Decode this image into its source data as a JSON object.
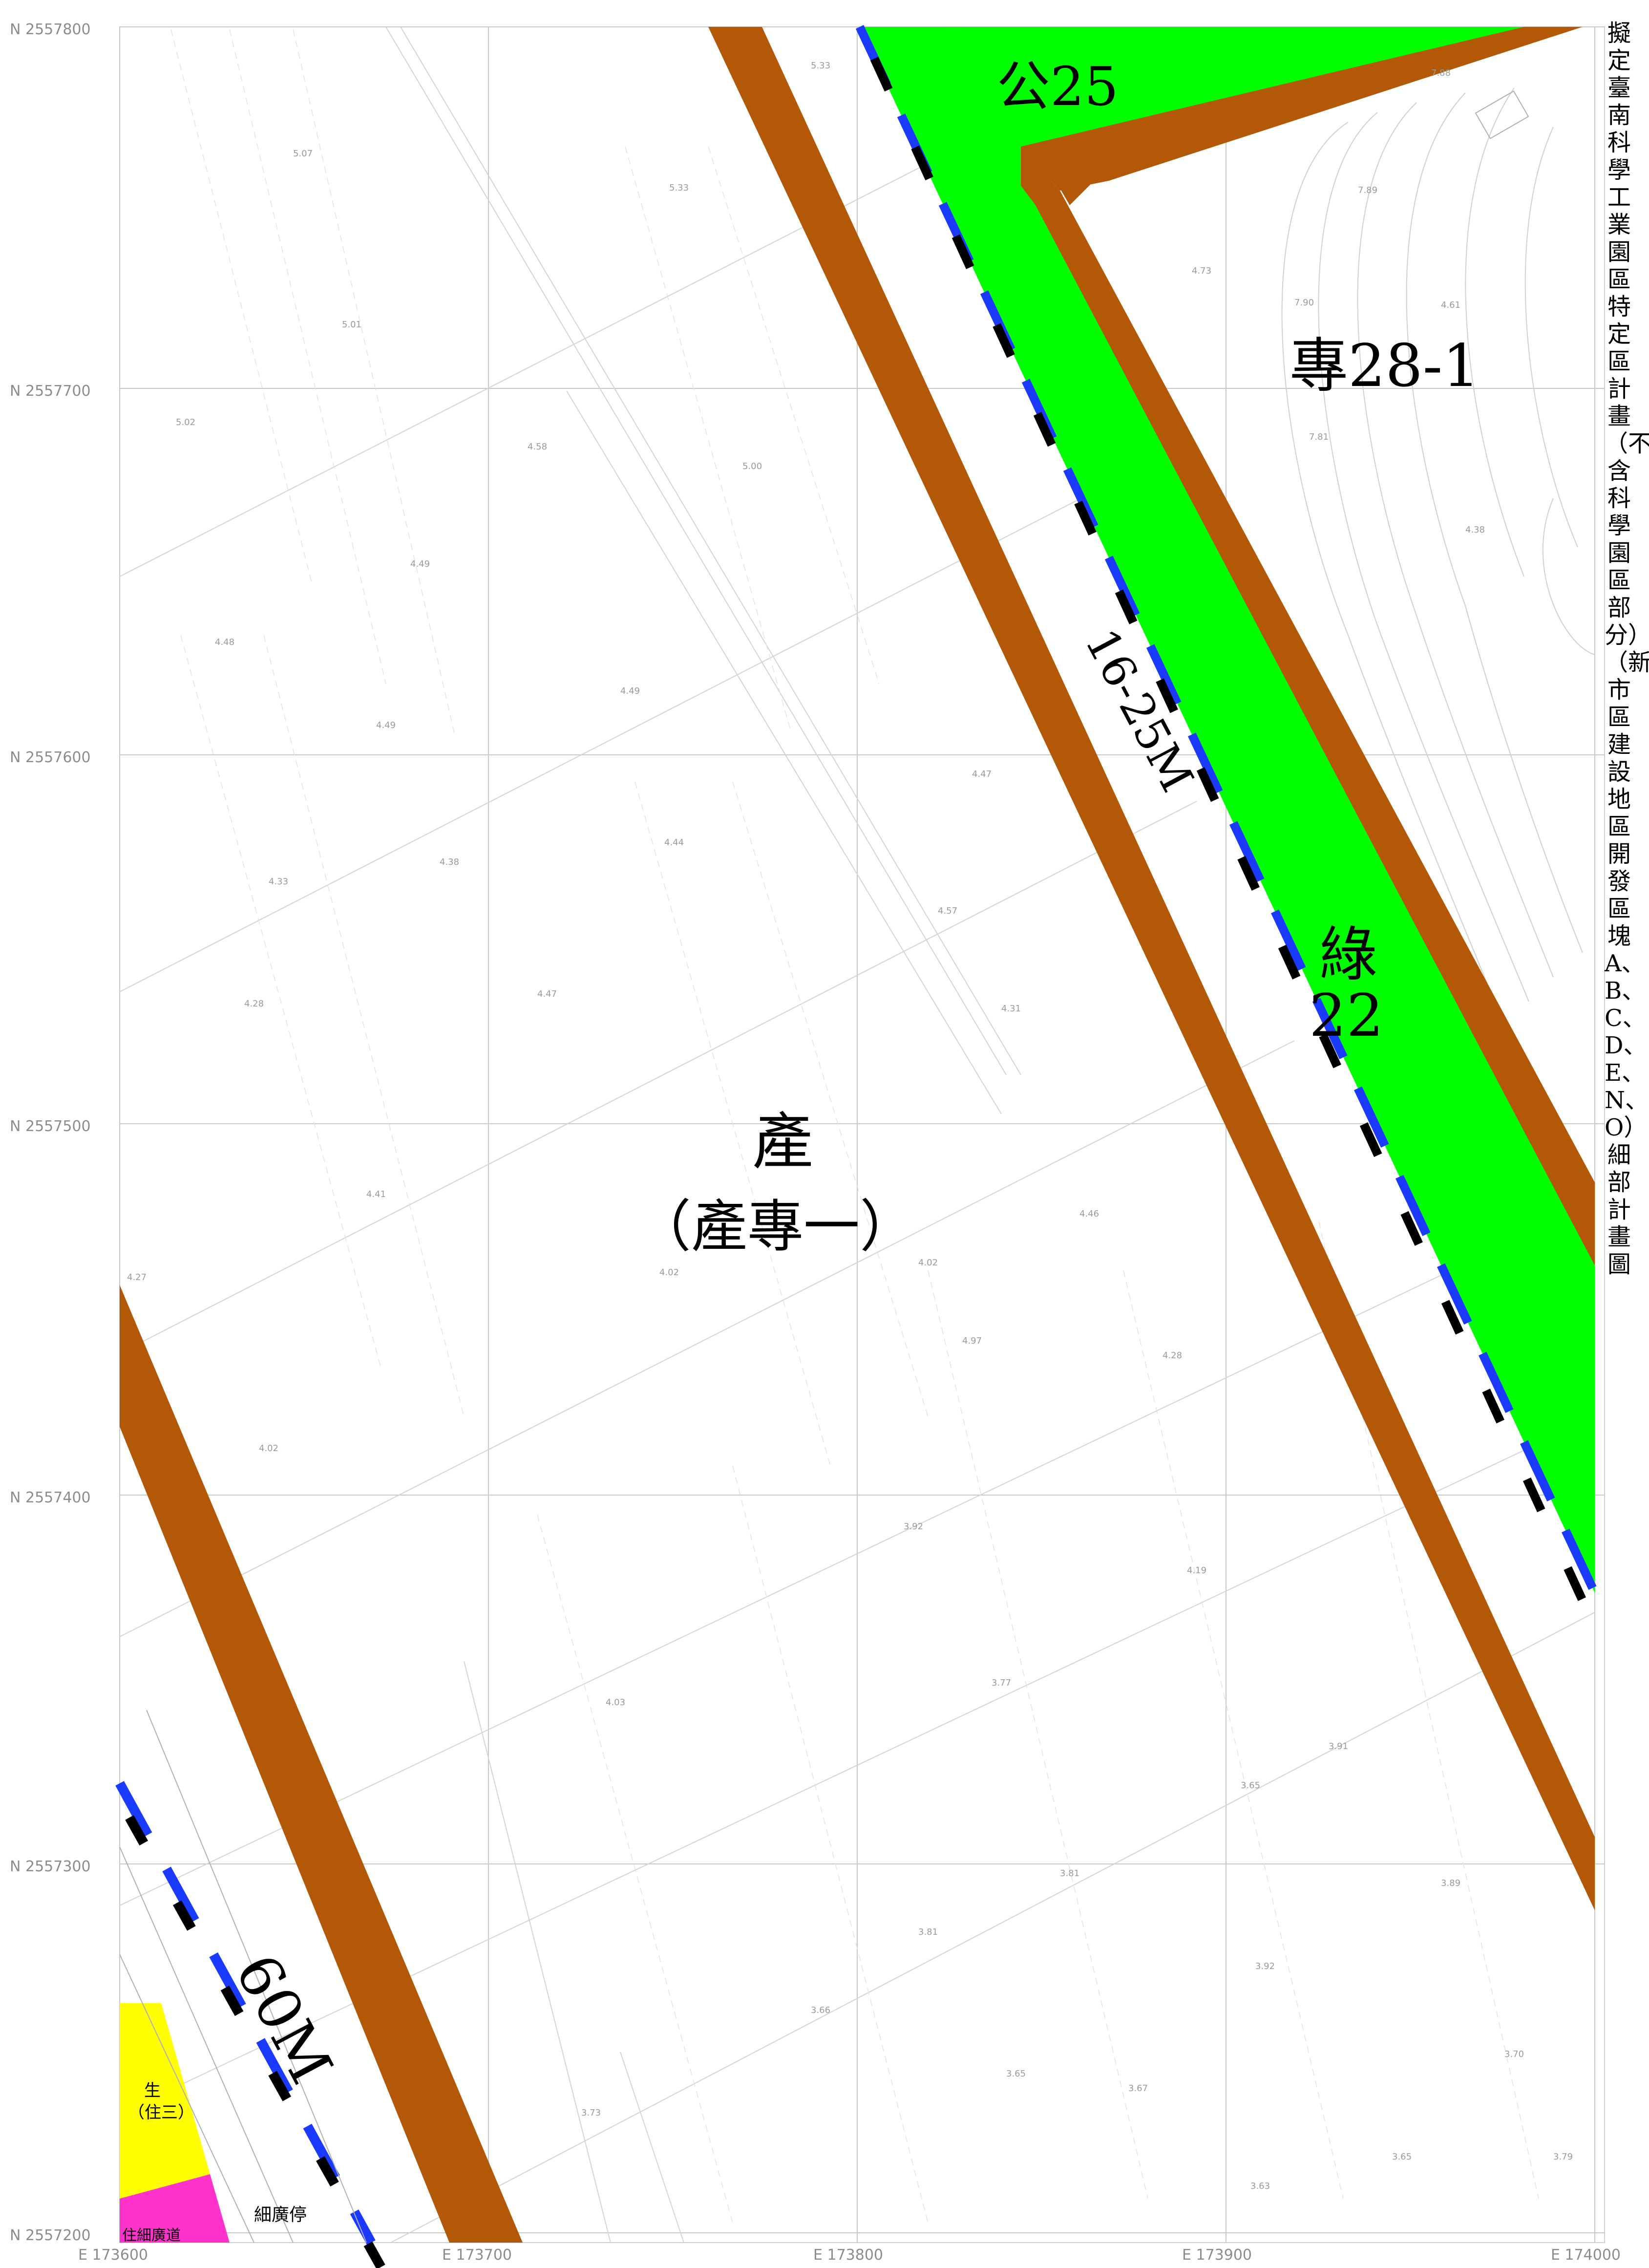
{
  "grid": {
    "northings": [
      "N 2557800",
      "N 2557700",
      "N 2557600",
      "N 2557500",
      "N 2557400",
      "N 2557300",
      "N 2557200"
    ],
    "eastings": [
      "E 173600",
      "E 173700",
      "E 173800",
      "E 173900",
      "E 174000"
    ]
  },
  "zones": {
    "park": "公25",
    "special": "專28-1",
    "green_top": "綠",
    "green_num": "22",
    "road_small": "16-25M",
    "road_big": "60M",
    "industry": "產",
    "industry_sub": "（產專一）",
    "residential_a": "生",
    "residential_b": "（住三）",
    "small_plaza": "細廣停",
    "small_road": "住細廣道"
  },
  "elevations": [
    "5.33",
    "5.07",
    "5.33",
    "5.01",
    "5.02",
    "4.58",
    "5.00",
    "4.49",
    "4.48",
    "4.49",
    "4.49",
    "4.47",
    "4.44",
    "4.38",
    "4.33",
    "4.57",
    "4.28",
    "4.47",
    "4.31",
    "4.41",
    "4.46",
    "4.27",
    "4.02",
    "4.02",
    "4.28",
    "4.02",
    "4.97",
    "3.92",
    "4.19",
    "3.77",
    "4.03",
    "3.91",
    "3.65",
    "3.81",
    "3.81",
    "3.89",
    "3.92",
    "3.66",
    "3.65",
    "3.67",
    "3.70",
    "3.73",
    "3.63",
    "3.65",
    "3.79",
    "4.38",
    "7.88",
    "7.89",
    "7.90",
    "7.81",
    "4.73",
    "4.61"
  ],
  "title": "擬定臺南科學工業園區特定區計畫（不含科學園區部分）（新市區建設地區開發區塊A、B、C、D、E、N、O）細部計畫圖",
  "colors": {
    "road": "#b35806",
    "green": "#00ff00",
    "blue_dash": "#1a3aff",
    "yellow": "#ffff00",
    "magenta": "#ff33cc"
  }
}
